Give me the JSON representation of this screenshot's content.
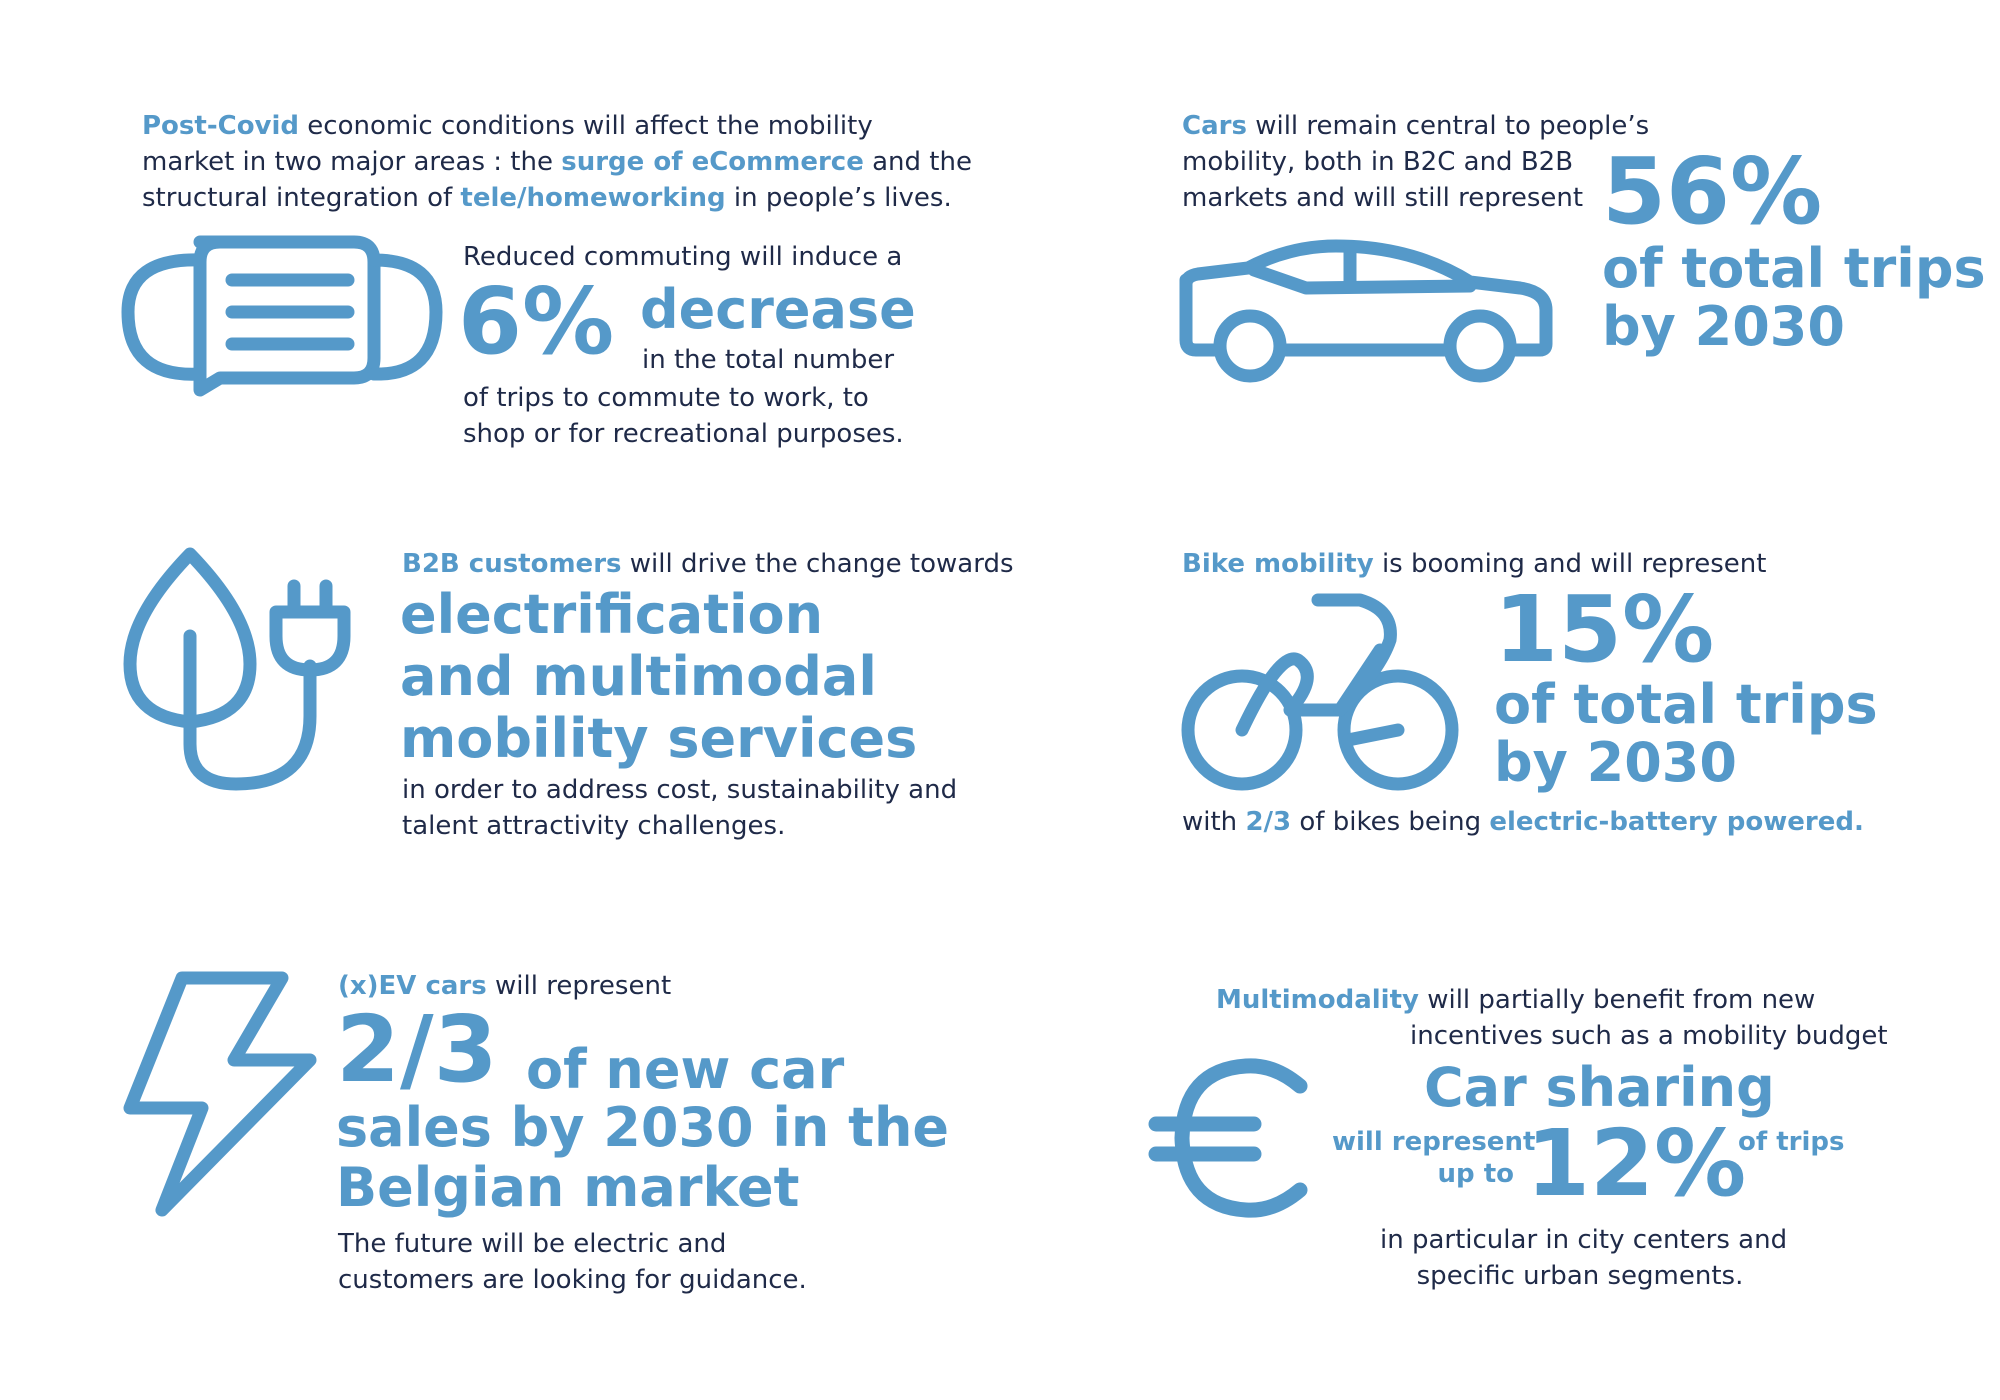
{
  "accent_color": "#5599c9",
  "text_color": "#1f2a48",
  "covid": {
    "icon": "face-mask-icon",
    "lead_hl": "Post-Covid",
    "lead_1": " economic conditions will affect the mobility",
    "lead_2a": "market in two major areas : the ",
    "lead_2hl": "surge of eCommerce",
    "lead_2b": " and the",
    "lead_3a": "structural integration of ",
    "lead_3hl": "tele/homeworking",
    "lead_3b": " in people’s lives.",
    "pre": "Reduced commuting will induce a",
    "stat": "6%",
    "stat_word": "decrease",
    "after_1": "in the total number",
    "after_2": "of trips to commute to work, to",
    "after_3": "shop or for recreational purposes."
  },
  "cars": {
    "icon": "car-icon",
    "lead_hl": "Cars",
    "lead_1": " will remain central to people’s",
    "lead_2": "mobility, both in B2C and B2B",
    "lead_3": "markets and will still represent",
    "stat": "56%",
    "stat_line1": "of total trips",
    "stat_line2": "by 2030"
  },
  "b2b": {
    "icon": "eco-plug-icon",
    "lead_hl": "B2B customers",
    "lead_1": " will drive the change towards",
    "big_1": "electrification",
    "big_2": "and multimodal",
    "big_3": "mobility services",
    "after_1": "in order to address cost, sustainability and",
    "after_2": "talent attractivity challenges."
  },
  "bike": {
    "icon": "bicycle-icon",
    "lead_hl": "Bike mobility",
    "lead_1": " is booming and will represent",
    "stat": "15%",
    "stat_line1": "of total trips",
    "stat_line2": "by 2030",
    "after_a": "with ",
    "after_hl1": "2/3",
    "after_b": " of bikes being ",
    "after_hl2": "electric-battery powered."
  },
  "ev": {
    "icon": "lightning-bolt-icon",
    "lead_hl": "(x)EV cars",
    "lead_1": " will represent",
    "stat": "2/3",
    "big_1": "of new car",
    "big_2": "sales by 2030 in the",
    "big_3": "Belgian market",
    "after_1": "The future will be electric and",
    "after_2": "customers are looking for guidance."
  },
  "multi": {
    "icon": "euro-icon",
    "lead_hl": "Multimodality",
    "lead_1": " will partially benefit from new",
    "lead_2": "incentives such as a mobility budget",
    "big_title": "Car sharing",
    "left_1": "will represent",
    "left_2": "up to",
    "stat": "12%",
    "right": "of trips",
    "after_1": "in particular in city centers and",
    "after_2": "specific urban segments."
  }
}
